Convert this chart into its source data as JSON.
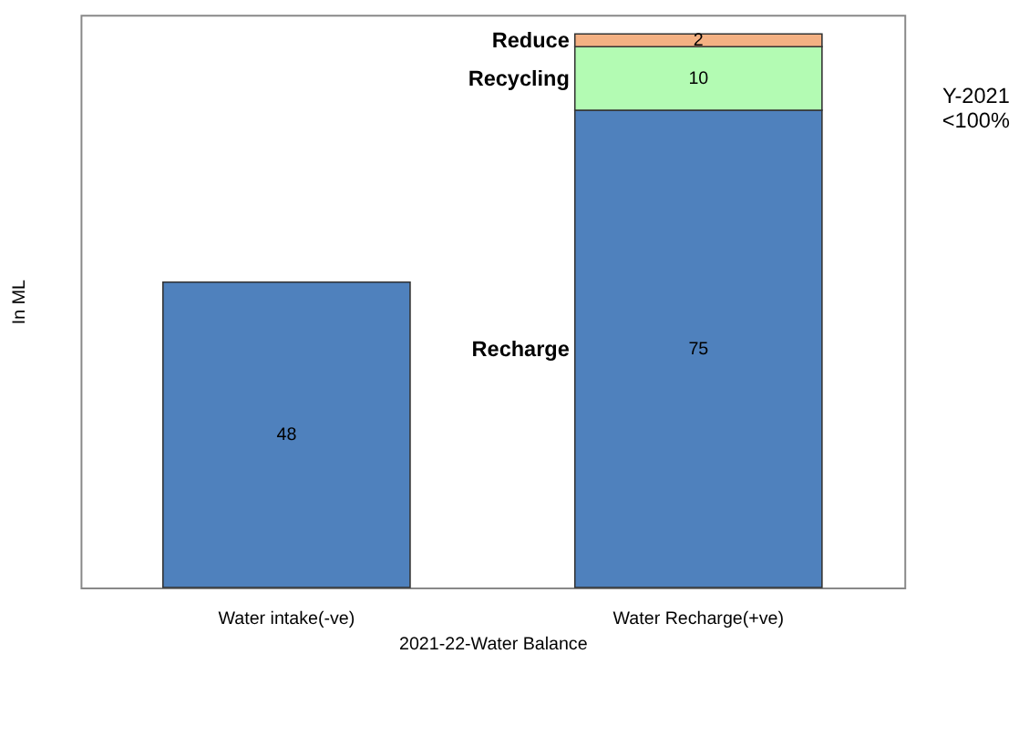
{
  "chart_data": {
    "type": "bar",
    "stacked": true,
    "categories": [
      "Water intake(-ve)",
      "Water Recharge(+ve)"
    ],
    "series": [
      {
        "name": "Recharge",
        "color": "#4f81bd",
        "values": [
          48,
          75
        ]
      },
      {
        "name": "Recycling",
        "color": "#b3fbb3",
        "values": [
          null,
          10
        ]
      },
      {
        "name": "Reduce",
        "color": "#f4b183",
        "values": [
          null,
          2
        ]
      }
    ],
    "ylabel": "In ML",
    "xlabel": "2021-22-Water Balance",
    "data_labels": true,
    "tick_labels": "x",
    "grid": false,
    "legend": false,
    "annotations": [
      "Y-2021\n<100%"
    ]
  }
}
